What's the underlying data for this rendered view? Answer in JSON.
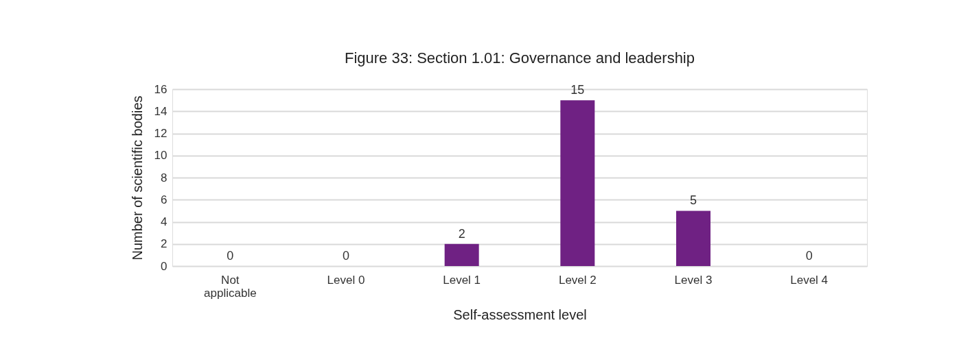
{
  "chart_data": {
    "type": "bar",
    "title": "Figure 33: Section 1.01: Governance and leadership",
    "categories": [
      "Not applicable",
      "Level 0",
      "Level 1",
      "Level 2",
      "Level 3",
      "Level 4"
    ],
    "values": [
      0,
      0,
      2,
      15,
      5,
      0
    ],
    "color": "#6f2183",
    "xlabel": "Self-assessment level",
    "ylabel": "Number of scientific bodies",
    "ylim": [
      0,
      16
    ],
    "yticks": [
      0,
      2,
      4,
      6,
      8,
      10,
      12,
      14,
      16
    ],
    "grid": "y",
    "data_labels": true
  }
}
